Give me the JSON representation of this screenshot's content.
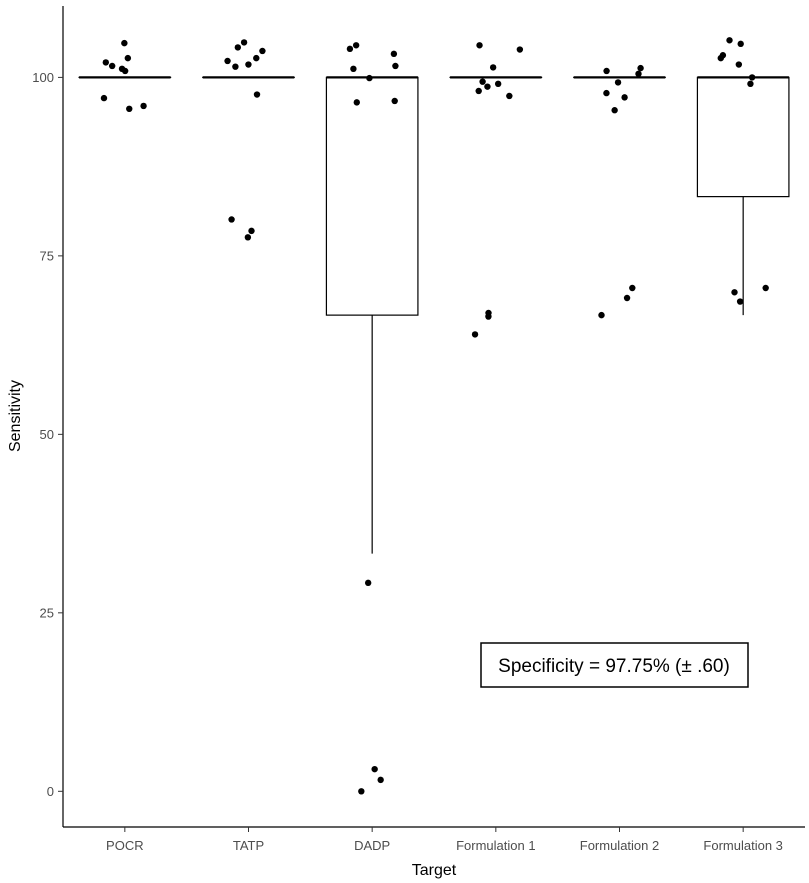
{
  "chart_data": {
    "type": "boxplot",
    "title": "",
    "xlabel": "Target",
    "ylabel": "Sensitivity",
    "ylim": [
      -5,
      110
    ],
    "yticks": [
      0,
      25,
      50,
      75,
      100
    ],
    "grid": false,
    "categories": [
      "POCR",
      "TATP",
      "DADP",
      "Formulation 1",
      "Formulation 2",
      "Formulation 3"
    ],
    "boxes": [
      {
        "category": "POCR",
        "min": 100,
        "q1": 100,
        "median": 100,
        "q3": 100,
        "max": 100
      },
      {
        "category": "TATP",
        "min": 100,
        "q1": 100,
        "median": 100,
        "q3": 100,
        "max": 100
      },
      {
        "category": "DADP",
        "min": 33.3,
        "q1": 66.7,
        "median": 100,
        "q3": 100,
        "max": 100
      },
      {
        "category": "Formulation 1",
        "min": 100,
        "q1": 100,
        "median": 100,
        "q3": 100,
        "max": 100
      },
      {
        "category": "Formulation 2",
        "min": 100,
        "q1": 100,
        "median": 100,
        "q3": 100,
        "max": 100
      },
      {
        "category": "Formulation 3",
        "min": 66.7,
        "q1": 83.3,
        "median": 100,
        "q3": 100,
        "max": 100
      }
    ],
    "points": [
      {
        "category": "POCR",
        "values": [
          104.8,
          102.7,
          102.1,
          101.6,
          101.2,
          100.9,
          97.1,
          96.0,
          95.6
        ]
      },
      {
        "category": "TATP",
        "values": [
          104.9,
          104.2,
          103.7,
          102.7,
          102.3,
          101.8,
          101.5,
          97.6,
          80.1,
          78.5,
          77.6
        ]
      },
      {
        "category": "DADP",
        "values": [
          104.5,
          104.0,
          103.3,
          101.6,
          101.2,
          99.9,
          96.7,
          96.5,
          29.2,
          3.1,
          1.6,
          0.0
        ]
      },
      {
        "category": "Formulation 1",
        "values": [
          104.5,
          103.9,
          101.4,
          99.4,
          99.1,
          98.7,
          98.1,
          97.4,
          67.0,
          66.5,
          64.0
        ]
      },
      {
        "category": "Formulation 2",
        "values": [
          101.3,
          100.9,
          100.5,
          99.3,
          97.8,
          97.2,
          95.4,
          70.5,
          69.1,
          66.7
        ]
      },
      {
        "category": "Formulation 3",
        "values": [
          105.2,
          104.7,
          103.1,
          102.7,
          101.8,
          100.0,
          99.1,
          70.5,
          69.9,
          68.6
        ]
      }
    ],
    "annotations": [
      {
        "text": "Specificity = 97.75% (± .60)",
        "placement": "bottom-right"
      }
    ]
  }
}
